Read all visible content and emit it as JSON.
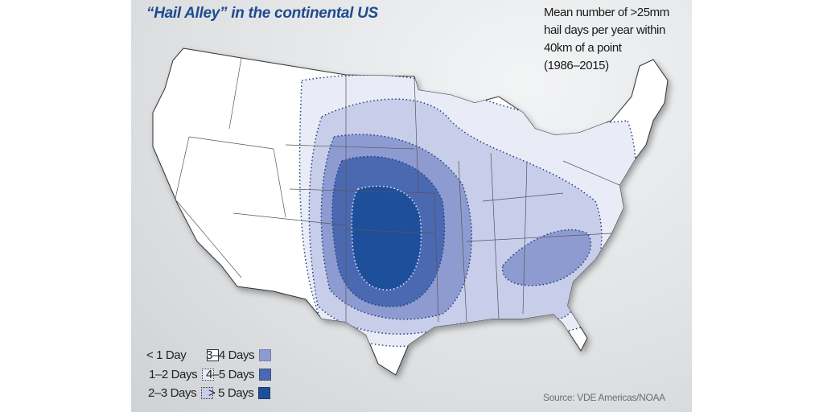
{
  "title": "“Hail Alley” in the continental US",
  "subtitle_lines": [
    "Mean number of >25mm",
    "hail days per year within",
    "40km of a point",
    "(1986–2015)"
  ],
  "legend": [
    {
      "label": "< 1 Day",
      "color": "#ffffff"
    },
    {
      "label": "1–2 Days",
      "color": "#e9ebf6"
    },
    {
      "label": "2–3 Days",
      "color": "#c8cdea"
    },
    {
      "label": "3–4 Days",
      "color": "#8e9bd1"
    },
    {
      "label": "4–5 Days",
      "color": "#4a69b1"
    },
    {
      "label": "> 5 Days",
      "color": "#1d4f9b"
    }
  ],
  "source": "Source:  VDE Americas/NOAA",
  "colors": {
    "title": "#1f4b8e",
    "contour_dots": "#1d3f7a"
  }
}
